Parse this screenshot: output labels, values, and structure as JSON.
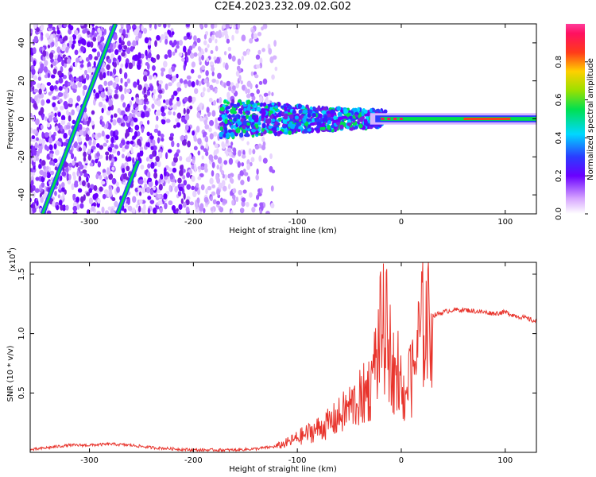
{
  "title": "C2E4.2023.232.09.02.G02",
  "colors": {
    "snr_line": "#e8342c",
    "points": "#7a1fe0",
    "background": "#ffffff"
  },
  "chart_data": [
    {
      "type": "heatmap",
      "title": "C2E4.2023.232.09.02.G02",
      "xlabel": "Height of straight line (km)",
      "ylabel": "Frequency (Hz)",
      "xlim": [
        -357,
        130
      ],
      "ylim": [
        -50,
        50
      ],
      "x_ticks": [
        -300,
        -200,
        -100,
        0,
        100
      ],
      "y_ticks": [
        -40,
        -20,
        0,
        20,
        40
      ],
      "colorbar": {
        "label": "Normalized spectral amplitude",
        "range": [
          0,
          1
        ],
        "ticks": [
          "0.0",
          "0.2",
          "0.4",
          "0.6",
          "0.8"
        ],
        "colormap": "rainbow (white-purple-blue-cyan-green-yellow-red-magenta)"
      },
      "features": {
        "strong_line_frequency": 0,
        "strong_line_x_range": [
          -20,
          130
        ],
        "diagonal_track_1": {
          "x": [
            -345,
            -275
          ],
          "y": [
            -50,
            50
          ]
        },
        "diagonal_track_2": {
          "x": [
            -273,
            -253
          ],
          "y": [
            -50,
            -22
          ]
        }
      }
    },
    {
      "type": "line",
      "xlabel": "Height of straight line (km)",
      "ylabel": "SNR (10 * v/v)",
      "y_scale_label": "(x10",
      "y_scale_exponent": "4",
      "xlim": [
        -357,
        130
      ],
      "ylim": [
        0,
        1.6
      ],
      "x_ticks": [
        -300,
        -200,
        -100,
        0,
        100
      ],
      "y_ticks": [
        "0.5",
        "1.0",
        "1.5"
      ],
      "series": [
        {
          "x": [
            -357,
            -340,
            -320,
            -300,
            -280,
            -260,
            -240,
            -220,
            -200,
            -180,
            -160,
            -140,
            -120,
            -110,
            -100,
            -90,
            -80,
            -70,
            -60,
            -50,
            -40,
            -30,
            -25,
            -20,
            -15,
            -10,
            -5,
            0,
            5,
            10,
            15,
            20,
            25,
            30,
            40,
            50,
            60,
            70,
            80,
            90,
            100,
            110,
            120,
            130
          ],
          "y": [
            0.02,
            0.04,
            0.06,
            0.06,
            0.07,
            0.06,
            0.04,
            0.03,
            0.02,
            0.02,
            0.02,
            0.03,
            0.05,
            0.08,
            0.12,
            0.16,
            0.2,
            0.24,
            0.3,
            0.38,
            0.45,
            0.55,
            0.75,
            1.0,
            1.05,
            0.8,
            0.6,
            0.45,
            0.55,
            0.6,
            0.85,
            1.05,
            1.1,
            1.15,
            1.18,
            1.2,
            1.2,
            1.19,
            1.18,
            1.17,
            1.18,
            1.15,
            1.13,
            1.1
          ]
        }
      ]
    }
  ]
}
